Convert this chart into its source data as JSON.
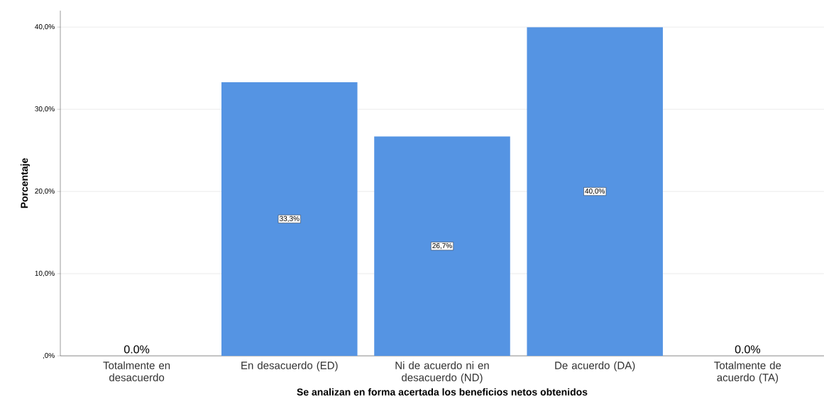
{
  "chart_data": {
    "type": "bar",
    "xlabel": "Se analizan en forma acertada los beneficios netos obtenidos",
    "ylabel": "Porcentaje",
    "categories": [
      "Totalmente en desacuerdo",
      "En desacuerdo (ED)",
      "Ni de acuerdo ni en desacuerdo (ND)",
      "De acuerdo (DA)",
      "Totalmente de acuerdo (TA)"
    ],
    "values": [
      0,
      33.3,
      26.7,
      40,
      0
    ],
    "value_labels": [
      "0.0%",
      "33,3%",
      "26,7%",
      "40,0%",
      "0.0%"
    ],
    "color": "#5594e3",
    "ylim": [
      0,
      42
    ],
    "yticks": [
      {
        "value": 0,
        "label": ",0%"
      },
      {
        "value": 10,
        "label": "10,0%"
      },
      {
        "value": 20,
        "label": "20,0%"
      },
      {
        "value": 30,
        "label": "30,0%"
      },
      {
        "value": 40,
        "label": "40,0%"
      }
    ],
    "grid": "y"
  }
}
